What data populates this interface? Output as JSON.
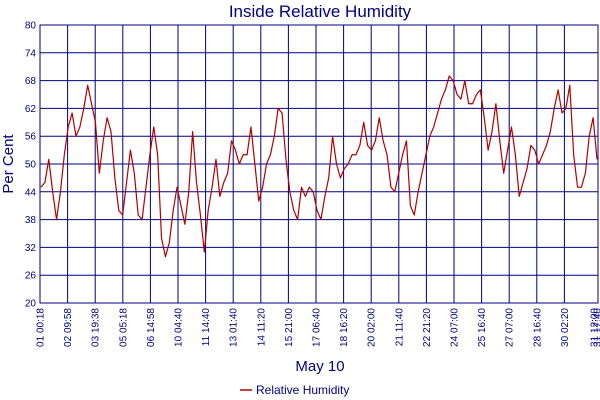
{
  "chart_data": {
    "type": "line",
    "title": "Inside Relative Humidity",
    "xlabel": "May 10",
    "ylabel": "Per Cent",
    "ylim": [
      20,
      80
    ],
    "yticks": [
      20,
      26,
      32,
      38,
      44,
      50,
      56,
      62,
      68,
      74,
      80
    ],
    "xticks": [
      "01 00:18",
      "02 09:58",
      "03 19:38",
      "05 05:18",
      "06 14:58",
      "10 04:40",
      "11 14:40",
      "13 01:40",
      "14 11:20",
      "15 21:00",
      "17 06:40",
      "18 16:20",
      "20 02:00",
      "21 11:40",
      "22 21:20",
      "24 07:00",
      "25 16:40",
      "27 07:00",
      "28 16:40",
      "30 02:20",
      "31 12:00",
      "31 17:40"
    ],
    "grid": true,
    "legend_position": "bottom-center",
    "series": [
      {
        "name": "Relative Humidity",
        "color": "#b00000",
        "values": [
          45,
          46,
          51,
          44,
          38,
          44,
          52,
          58,
          61,
          56,
          58,
          62,
          67,
          63,
          59,
          48,
          55,
          60,
          57,
          47,
          40,
          39,
          46,
          53,
          48,
          39,
          38,
          45,
          52,
          58,
          52,
          34,
          30,
          33,
          40,
          45,
          41,
          37,
          44,
          57,
          46,
          39,
          31,
          40,
          45,
          51,
          43,
          46,
          48,
          55,
          53,
          50,
          52,
          52,
          58,
          50,
          42,
          45,
          50,
          52,
          56,
          62,
          61,
          51,
          44,
          40,
          38,
          45,
          43,
          45,
          44,
          40,
          38,
          43,
          47,
          56,
          50,
          47,
          49,
          50,
          52,
          52,
          54,
          59,
          54,
          53,
          55,
          60,
          55,
          52,
          45,
          44,
          48,
          52,
          55,
          41,
          39,
          44,
          48,
          52,
          56,
          58,
          61,
          64,
          66,
          69,
          68,
          65,
          64,
          68,
          63,
          63,
          65,
          66,
          60,
          53,
          57,
          63,
          55,
          48,
          53,
          58,
          52,
          43,
          46,
          49,
          54,
          53,
          50,
          52,
          54,
          57,
          62,
          66,
          61,
          62,
          67,
          52,
          45,
          45,
          48,
          56,
          60,
          51
        ]
      }
    ]
  }
}
